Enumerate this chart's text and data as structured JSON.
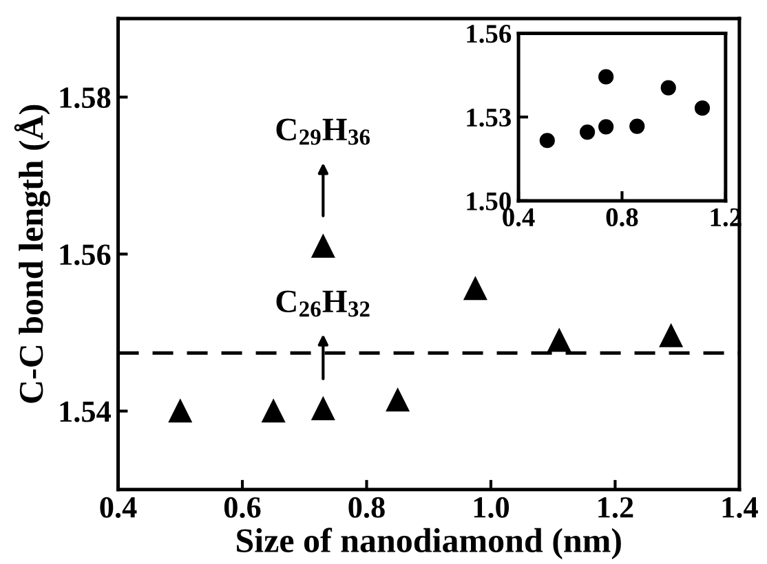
{
  "chart_data": [
    {
      "type": "scatter",
      "xlabel": "Size of nanodiamond (nm)",
      "ylabel": "C-C bond length (Å)",
      "x": [
        0.5,
        0.65,
        0.73,
        0.85,
        0.73,
        0.975,
        1.11,
        1.29
      ],
      "series": [
        {
          "color": "#000000",
          "values": [
            1.54,
            1.54,
            1.5403,
            1.5414,
            1.561,
            1.5556,
            1.549,
            1.5496
          ]
        }
      ],
      "marker": "triangle",
      "xlim": [
        0.4,
        1.4
      ],
      "ylim": [
        1.53,
        1.59
      ],
      "xticks": [
        0.4,
        0.6,
        0.8,
        {
          "value": 1.0,
          "label": "1.0"
        },
        1.2,
        1.4
      ],
      "yticks": [
        1.54,
        1.56,
        1.58
      ],
      "ref_lines": [
        {
          "axis": "y",
          "value": 1.5474,
          "color": "#000000",
          "line_style": "dashed"
        }
      ],
      "annotations": [
        "C$_{29}$H$_{36}$",
        "C$_{26}$H$_{32}$"
      ]
    },
    {
      "type": "scatter",
      "x": [
        0.511,
        0.666,
        0.738,
        0.738,
        0.858,
        0.979,
        1.11
      ],
      "series": [
        {
          "color": "#000000",
          "values": [
            1.5216,
            1.5246,
            1.5265,
            1.5444,
            1.5267,
            1.5405,
            1.5332
          ]
        }
      ],
      "marker": "circle",
      "xlim": [
        0.4,
        1.2
      ],
      "ylim": [
        1.5,
        1.56
      ],
      "xticks": [
        0.4,
        0.8,
        1.2
      ],
      "yticks": [
        {
          "value": 1.5,
          "label": "1.50"
        },
        1.53,
        1.56
      ]
    }
  ]
}
